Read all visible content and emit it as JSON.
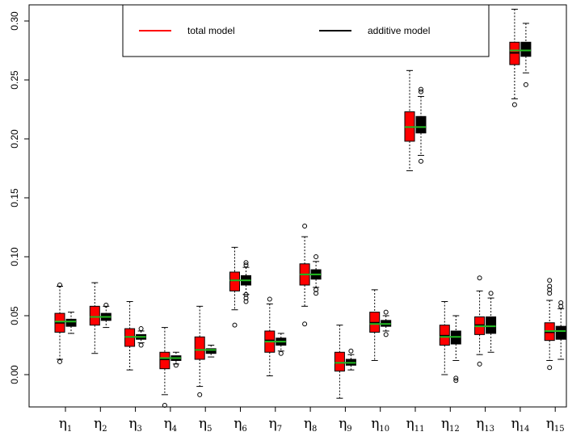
{
  "chart_data": {
    "type": "boxplot",
    "title": "",
    "xlabel": "",
    "ylabel": "",
    "ylim": [
      -0.035,
      0.31
    ],
    "yticks": [
      "0.00",
      "0.05",
      "0.10",
      "0.15",
      "0.20",
      "0.25",
      "0.30"
    ],
    "categories": [
      {
        "base": "η",
        "sub": "1"
      },
      {
        "base": "η",
        "sub": "2"
      },
      {
        "base": "η",
        "sub": "3"
      },
      {
        "base": "η",
        "sub": "4"
      },
      {
        "base": "η",
        "sub": "5"
      },
      {
        "base": "η",
        "sub": "6"
      },
      {
        "base": "η",
        "sub": "7"
      },
      {
        "base": "η",
        "sub": "8"
      },
      {
        "base": "η",
        "sub": "9"
      },
      {
        "base": "η",
        "sub": "10"
      },
      {
        "base": "η",
        "sub": "11"
      },
      {
        "base": "η",
        "sub": "12"
      },
      {
        "base": "η",
        "sub": "13"
      },
      {
        "base": "η",
        "sub": "14"
      },
      {
        "base": "η",
        "sub": "15"
      }
    ],
    "true_values": [
      0.045,
      0.049,
      0.032,
      0.014,
      0.021,
      0.08,
      0.028,
      0.085,
      0.01,
      0.043,
      0.21,
      0.032,
      0.041,
      0.275,
      0.037
    ],
    "true_value_color": "#22bb22",
    "legend": {
      "position": "top-center"
    },
    "series": [
      {
        "name": "total model",
        "color": "#ff0000",
        "boxes": [
          {
            "min": 0.013,
            "q1": 0.036,
            "median": 0.044,
            "q3": 0.052,
            "max": 0.075,
            "outliers": [
              0.011,
              0.076
            ]
          },
          {
            "min": 0.018,
            "q1": 0.042,
            "median": 0.049,
            "q3": 0.058,
            "max": 0.078,
            "outliers": []
          },
          {
            "min": 0.004,
            "q1": 0.024,
            "median": 0.032,
            "q3": 0.039,
            "max": 0.062,
            "outliers": []
          },
          {
            "min": -0.017,
            "q1": 0.005,
            "median": 0.013,
            "q3": 0.019,
            "max": 0.04,
            "outliers": [
              -0.026
            ]
          },
          {
            "min": -0.01,
            "q1": 0.013,
            "median": 0.021,
            "q3": 0.032,
            "max": 0.058,
            "outliers": [
              -0.017
            ]
          },
          {
            "min": 0.055,
            "q1": 0.071,
            "median": 0.08,
            "q3": 0.087,
            "max": 0.108,
            "outliers": [
              0.042
            ]
          },
          {
            "min": -0.001,
            "q1": 0.019,
            "median": 0.029,
            "q3": 0.037,
            "max": 0.06,
            "outliers": [
              0.064
            ]
          },
          {
            "min": 0.058,
            "q1": 0.076,
            "median": 0.085,
            "q3": 0.094,
            "max": 0.117,
            "outliers": [
              0.043,
              0.126
            ]
          },
          {
            "min": -0.02,
            "q1": 0.003,
            "median": 0.01,
            "q3": 0.019,
            "max": 0.042,
            "outliers": []
          },
          {
            "min": 0.012,
            "q1": 0.036,
            "median": 0.044,
            "q3": 0.053,
            "max": 0.072,
            "outliers": []
          },
          {
            "min": 0.173,
            "q1": 0.198,
            "median": 0.21,
            "q3": 0.223,
            "max": 0.258,
            "outliers": []
          },
          {
            "min": 0.0,
            "q1": 0.025,
            "median": 0.033,
            "q3": 0.042,
            "max": 0.062,
            "outliers": []
          },
          {
            "min": 0.017,
            "q1": 0.034,
            "median": 0.042,
            "q3": 0.049,
            "max": 0.071,
            "outliers": [
              0.009,
              0.082
            ]
          },
          {
            "min": 0.234,
            "q1": 0.263,
            "median": 0.273,
            "q3": 0.282,
            "max": 0.31,
            "outliers": [
              0.229
            ]
          },
          {
            "min": 0.012,
            "q1": 0.029,
            "median": 0.036,
            "q3": 0.044,
            "max": 0.063,
            "outliers": [
              0.006,
              0.069,
              0.072,
              0.075,
              0.08
            ]
          }
        ]
      },
      {
        "name": "additive model",
        "color": "#000000",
        "boxes": [
          {
            "min": 0.035,
            "q1": 0.041,
            "median": 0.044,
            "q3": 0.047,
            "max": 0.053,
            "outliers": []
          },
          {
            "min": 0.04,
            "q1": 0.046,
            "median": 0.049,
            "q3": 0.052,
            "max": 0.058,
            "outliers": [
              0.059
            ]
          },
          {
            "min": 0.027,
            "q1": 0.03,
            "median": 0.032,
            "q3": 0.034,
            "max": 0.037,
            "outliers": [
              0.025,
              0.039
            ]
          },
          {
            "min": 0.009,
            "q1": 0.012,
            "median": 0.014,
            "q3": 0.016,
            "max": 0.019,
            "outliers": [
              0.008
            ]
          },
          {
            "min": 0.015,
            "q1": 0.018,
            "median": 0.02,
            "q3": 0.022,
            "max": 0.025,
            "outliers": []
          },
          {
            "min": 0.068,
            "q1": 0.076,
            "median": 0.08,
            "q3": 0.084,
            "max": 0.091,
            "outliers": [
              0.062,
              0.065,
              0.068,
              0.093,
              0.095
            ]
          },
          {
            "min": 0.02,
            "q1": 0.025,
            "median": 0.028,
            "q3": 0.031,
            "max": 0.035,
            "outliers": [
              0.018
            ]
          },
          {
            "min": 0.074,
            "q1": 0.081,
            "median": 0.085,
            "q3": 0.089,
            "max": 0.096,
            "outliers": [
              0.069,
              0.072,
              0.1
            ]
          },
          {
            "min": 0.004,
            "q1": 0.008,
            "median": 0.01,
            "q3": 0.013,
            "max": 0.017,
            "outliers": [
              0.02
            ]
          },
          {
            "min": 0.037,
            "q1": 0.041,
            "median": 0.043,
            "q3": 0.046,
            "max": 0.05,
            "outliers": [
              0.034,
              0.053
            ]
          },
          {
            "min": 0.186,
            "q1": 0.205,
            "median": 0.211,
            "q3": 0.219,
            "max": 0.236,
            "outliers": [
              0.181,
              0.24,
              0.242
            ]
          },
          {
            "min": 0.012,
            "q1": 0.026,
            "median": 0.032,
            "q3": 0.037,
            "max": 0.05,
            "outliers": [
              -0.005,
              -0.003
            ]
          },
          {
            "min": 0.019,
            "q1": 0.035,
            "median": 0.041,
            "q3": 0.049,
            "max": 0.065,
            "outliers": [
              0.069
            ]
          },
          {
            "min": 0.256,
            "q1": 0.27,
            "median": 0.275,
            "q3": 0.282,
            "max": 0.298,
            "outliers": [
              0.246
            ]
          },
          {
            "min": 0.013,
            "q1": 0.03,
            "median": 0.036,
            "q3": 0.041,
            "max": 0.056,
            "outliers": [
              0.058,
              0.061
            ]
          }
        ]
      }
    ]
  }
}
